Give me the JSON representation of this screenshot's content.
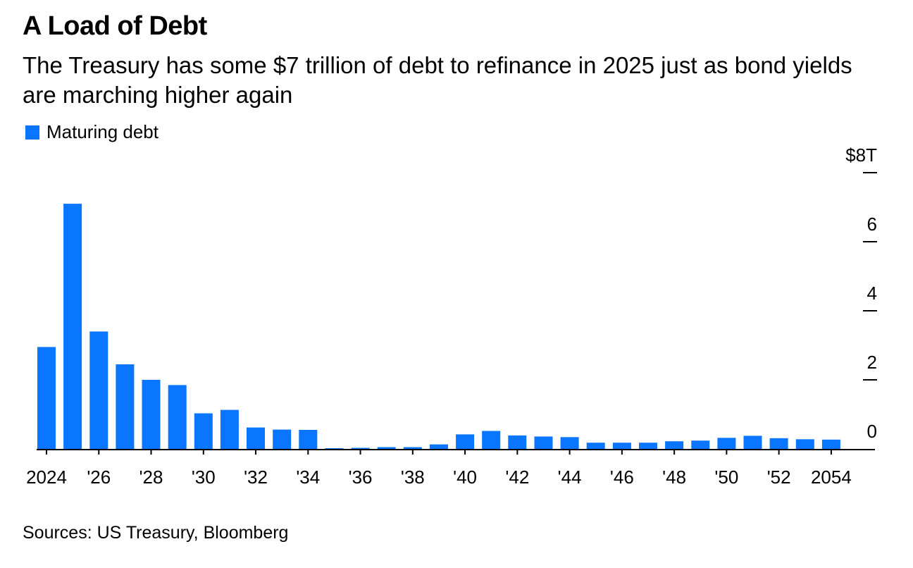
{
  "title": "A Load of Debt",
  "subtitle": "The Treasury has some $7 trillion of debt to refinance in 2025 just as bond yields are marching higher again",
  "source": "Sources: US Treasury, Bloomberg",
  "colors": {
    "bar": "#0a75ff",
    "axis": "#000000"
  },
  "chart_data": {
    "type": "bar",
    "title": "A Load of Debt",
    "legend": [
      "Maturing debt"
    ],
    "legend_position": "top-left",
    "xlabel": "",
    "ylabel": "",
    "ylim": [
      0,
      8
    ],
    "y_ticks": [
      0,
      2,
      4,
      6,
      8
    ],
    "y_tick_labels": [
      "0",
      "2",
      "4",
      "6",
      "$8T"
    ],
    "y_axis_side": "right",
    "grid": false,
    "categories": [
      "2024",
      "2025",
      "2026",
      "2027",
      "2028",
      "2029",
      "2030",
      "2031",
      "2032",
      "2033",
      "2034",
      "2035",
      "2036",
      "2037",
      "2038",
      "2039",
      "2040",
      "2041",
      "2042",
      "2043",
      "2044",
      "2045",
      "2046",
      "2047",
      "2048",
      "2049",
      "2050",
      "2051",
      "2052",
      "2053",
      "2054"
    ],
    "x_tick_labels": [
      "2024",
      "'26",
      "'28",
      "'30",
      "'32",
      "'34",
      "'36",
      "'38",
      "'40",
      "'42",
      "'44",
      "'46",
      "'48",
      "'50",
      "'52",
      "2054"
    ],
    "series": [
      {
        "name": "Maturing debt",
        "values": [
          2.95,
          7.1,
          3.4,
          2.45,
          2.0,
          1.85,
          1.03,
          1.13,
          0.62,
          0.56,
          0.55,
          0.02,
          0.03,
          0.05,
          0.05,
          0.13,
          0.42,
          0.52,
          0.39,
          0.36,
          0.34,
          0.18,
          0.18,
          0.18,
          0.22,
          0.24,
          0.32,
          0.38,
          0.31,
          0.28,
          0.27
        ]
      }
    ]
  }
}
